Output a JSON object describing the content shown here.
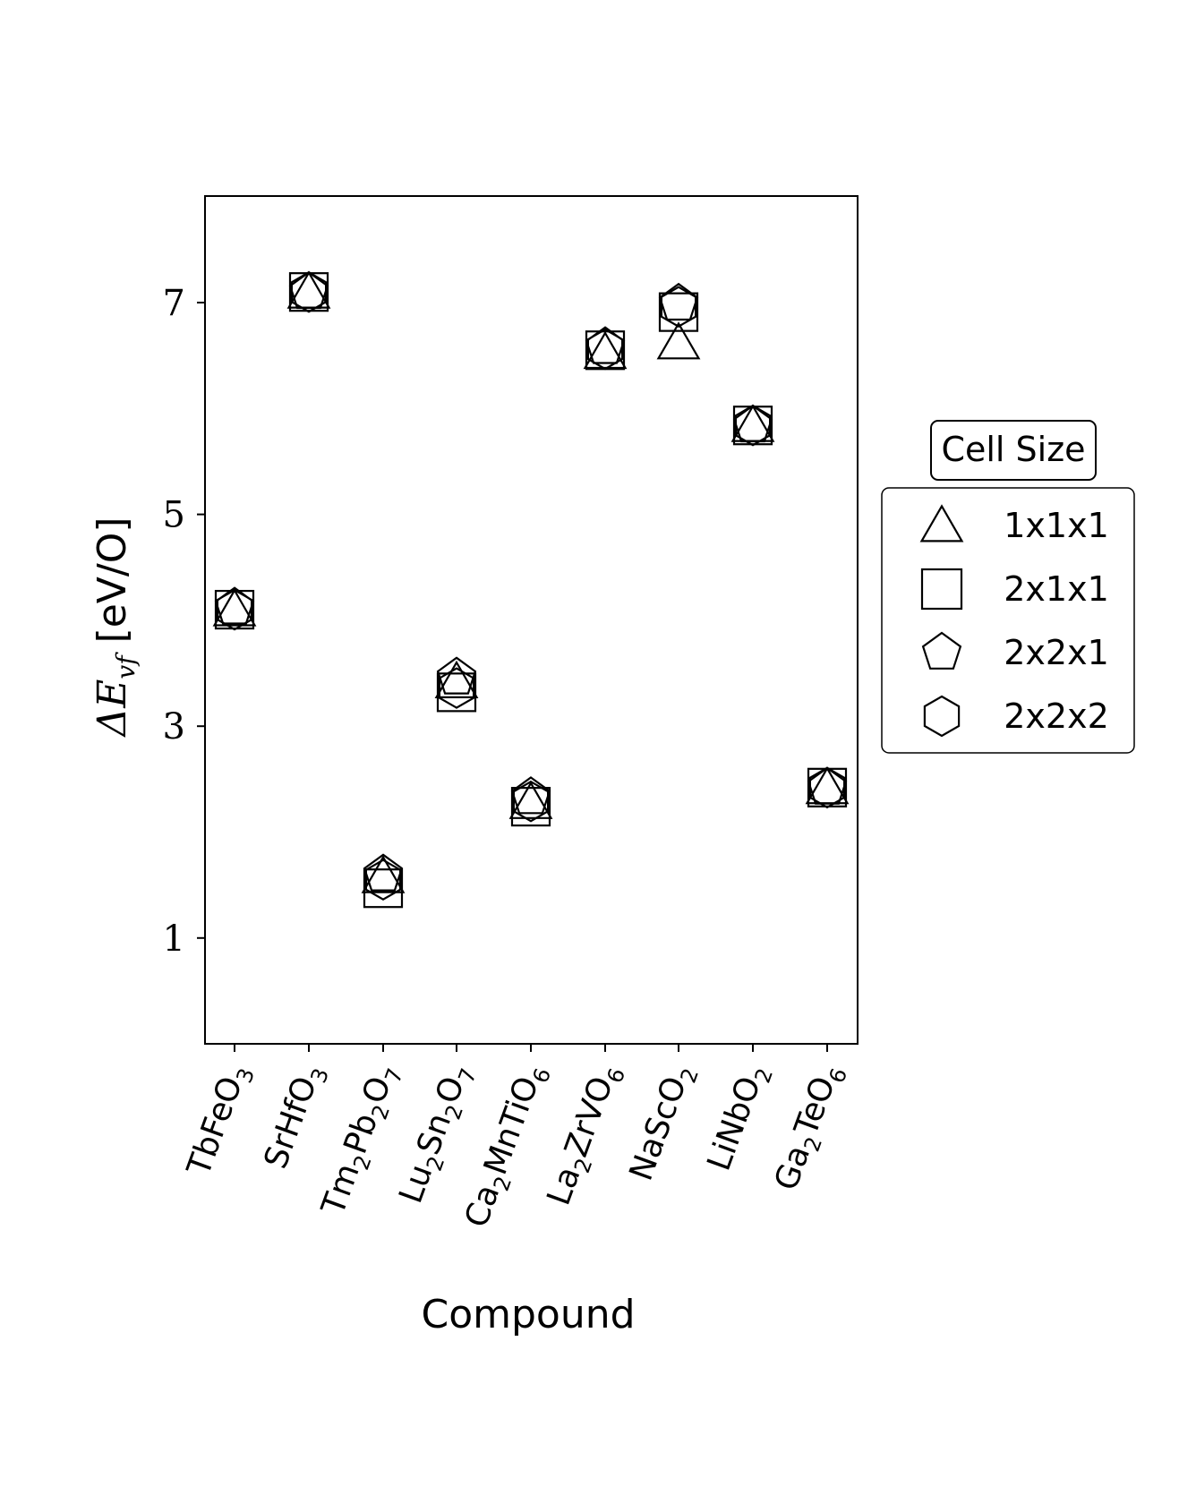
{
  "chart_data": {
    "type": "scatter",
    "title": "",
    "xlabel": "Compound",
    "ylabel": "ΔE_vf [eV/O]",
    "ylim": [
      0,
      8
    ],
    "yticks": [
      1,
      3,
      5,
      7
    ],
    "grid": false,
    "legend_position": "right",
    "legend_title": "Cell Size",
    "categories": [
      "TbFeO3",
      "SrHfO3",
      "Tm2Pb2O7",
      "Lu2Sn2O7",
      "Ca2MnTiO6",
      "La2ZrVO6",
      "NaScO2",
      "LiNbO2",
      "Ga2TeO6"
    ],
    "series": [
      {
        "name": "1x1x1",
        "marker": "triangle",
        "values": [
          4.1,
          7.1,
          1.58,
          3.42,
          2.28,
          6.53,
          6.62,
          5.84,
          2.42
        ]
      },
      {
        "name": "2x1x1",
        "marker": "square",
        "values": [
          4.1,
          7.1,
          1.47,
          3.32,
          2.24,
          6.55,
          6.91,
          5.84,
          2.42
        ]
      },
      {
        "name": "2x2x1",
        "marker": "pentagon",
        "values": [
          4.12,
          7.1,
          1.6,
          3.46,
          2.33,
          6.58,
          6.99,
          5.84,
          2.42
        ]
      },
      {
        "name": "2x2x2",
        "marker": "hexagon",
        "values": [
          4.1,
          7.1,
          1.55,
          3.36,
          2.29,
          6.56,
          6.96,
          5.84,
          2.42
        ]
      }
    ]
  },
  "axes": {
    "ylabel_main": "ΔE",
    "ylabel_sub": "vf",
    "ylabel_unit": " [eV/O]",
    "xlabel": "Compound",
    "ytick_labels": [
      "1",
      "3",
      "5",
      "7"
    ]
  },
  "categories_display": [
    {
      "base": "TbFeO",
      "parts": [
        [
          "TbFeO",
          ""
        ],
        [
          "3",
          "sub"
        ]
      ]
    },
    {
      "base": "SrHfO",
      "parts": [
        [
          "SrHfO",
          ""
        ],
        [
          "3",
          "sub"
        ]
      ]
    },
    {
      "base": "Tm",
      "parts": [
        [
          "Tm",
          ""
        ],
        [
          "2",
          "sub"
        ],
        [
          "Pb",
          ""
        ],
        [
          "2",
          "sub"
        ],
        [
          "O",
          ""
        ],
        [
          "7",
          "sub"
        ]
      ]
    },
    {
      "base": "Lu",
      "parts": [
        [
          "Lu",
          ""
        ],
        [
          "2",
          "sub"
        ],
        [
          "Sn",
          ""
        ],
        [
          "2",
          "sub"
        ],
        [
          "O",
          ""
        ],
        [
          "7",
          "sub"
        ]
      ]
    },
    {
      "base": "Ca",
      "parts": [
        [
          "Ca",
          ""
        ],
        [
          "2",
          "sub"
        ],
        [
          "MnTiO",
          ""
        ],
        [
          "6",
          "sub"
        ]
      ]
    },
    {
      "base": "La",
      "parts": [
        [
          "La",
          ""
        ],
        [
          "2",
          "sub"
        ],
        [
          "ZrVO",
          ""
        ],
        [
          "6",
          "sub"
        ]
      ]
    },
    {
      "base": "NaScO",
      "parts": [
        [
          "NaScO",
          ""
        ],
        [
          "2",
          "sub"
        ]
      ]
    },
    {
      "base": "LiNbO",
      "parts": [
        [
          "LiNbO",
          ""
        ],
        [
          "2",
          "sub"
        ]
      ]
    },
    {
      "base": "Ga",
      "parts": [
        [
          "Ga",
          ""
        ],
        [
          "2",
          "sub"
        ],
        [
          "TeO",
          ""
        ],
        [
          "6",
          "sub"
        ]
      ]
    }
  ],
  "legend": {
    "title": "Cell Size",
    "items": [
      {
        "label": "1x1x1",
        "icon": "triangle-marker-icon"
      },
      {
        "label": "2x1x1",
        "icon": "square-marker-icon"
      },
      {
        "label": "2x2x1",
        "icon": "pentagon-marker-icon"
      },
      {
        "label": "2x2x2",
        "icon": "hexagon-marker-icon"
      }
    ]
  },
  "colors": {
    "marker_edge": "#000000",
    "axis": "#000000",
    "background": "#ffffff"
  }
}
